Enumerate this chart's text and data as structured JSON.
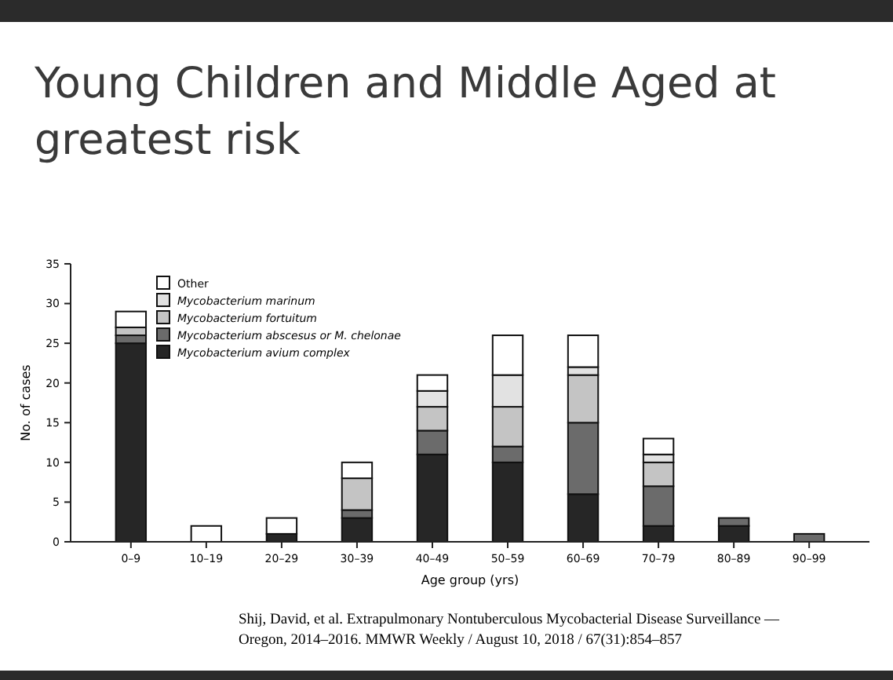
{
  "chart_data": {
    "type": "bar",
    "title": "Young Children and Middle Aged at greatest risk",
    "xlabel": "Age group (yrs)",
    "ylabel": "No. of cases",
    "categories": [
      "0–9",
      "10–19",
      "20–29",
      "30–39",
      "40–49",
      "50–59",
      "60–69",
      "70–79",
      "80–89",
      "90–99"
    ],
    "stacked": true,
    "series": [
      {
        "name": "Mycobacterium avium complex",
        "color": "#262626",
        "values": [
          25,
          0,
          1,
          3,
          11,
          10,
          6,
          2,
          2,
          0
        ]
      },
      {
        "name": "Mycobacterium abscesus or M. chelonae",
        "color": "#6b6b6b",
        "values": [
          1,
          0,
          0,
          1,
          3,
          2,
          9,
          5,
          1,
          1
        ]
      },
      {
        "name": "Mycobacterium fortuitum",
        "color": "#c4c4c4",
        "values": [
          1,
          0,
          0,
          4,
          3,
          5,
          6,
          3,
          0,
          0
        ]
      },
      {
        "name": "Mycobacterium marinum",
        "color": "#e2e2e2",
        "values": [
          0,
          0,
          0,
          0,
          2,
          4,
          1,
          1,
          0,
          0
        ]
      },
      {
        "name": "Other",
        "color": "#ffffff",
        "values": [
          2,
          2,
          2,
          2,
          2,
          5,
          4,
          2,
          0,
          0
        ]
      }
    ],
    "ylim": [
      0,
      35
    ],
    "yticks": [
      0,
      5,
      10,
      15,
      20,
      25,
      30,
      35
    ],
    "grid": false,
    "legend": "top left",
    "annotations": [
      "Shij, David, et al. Extrapulmonary Nontuberculous Mycobacterial Disease Surveillance —",
      "Oregon, 2014–2016. MMWR Weekly / August 10, 2018 / 67(31):854–857"
    ]
  }
}
